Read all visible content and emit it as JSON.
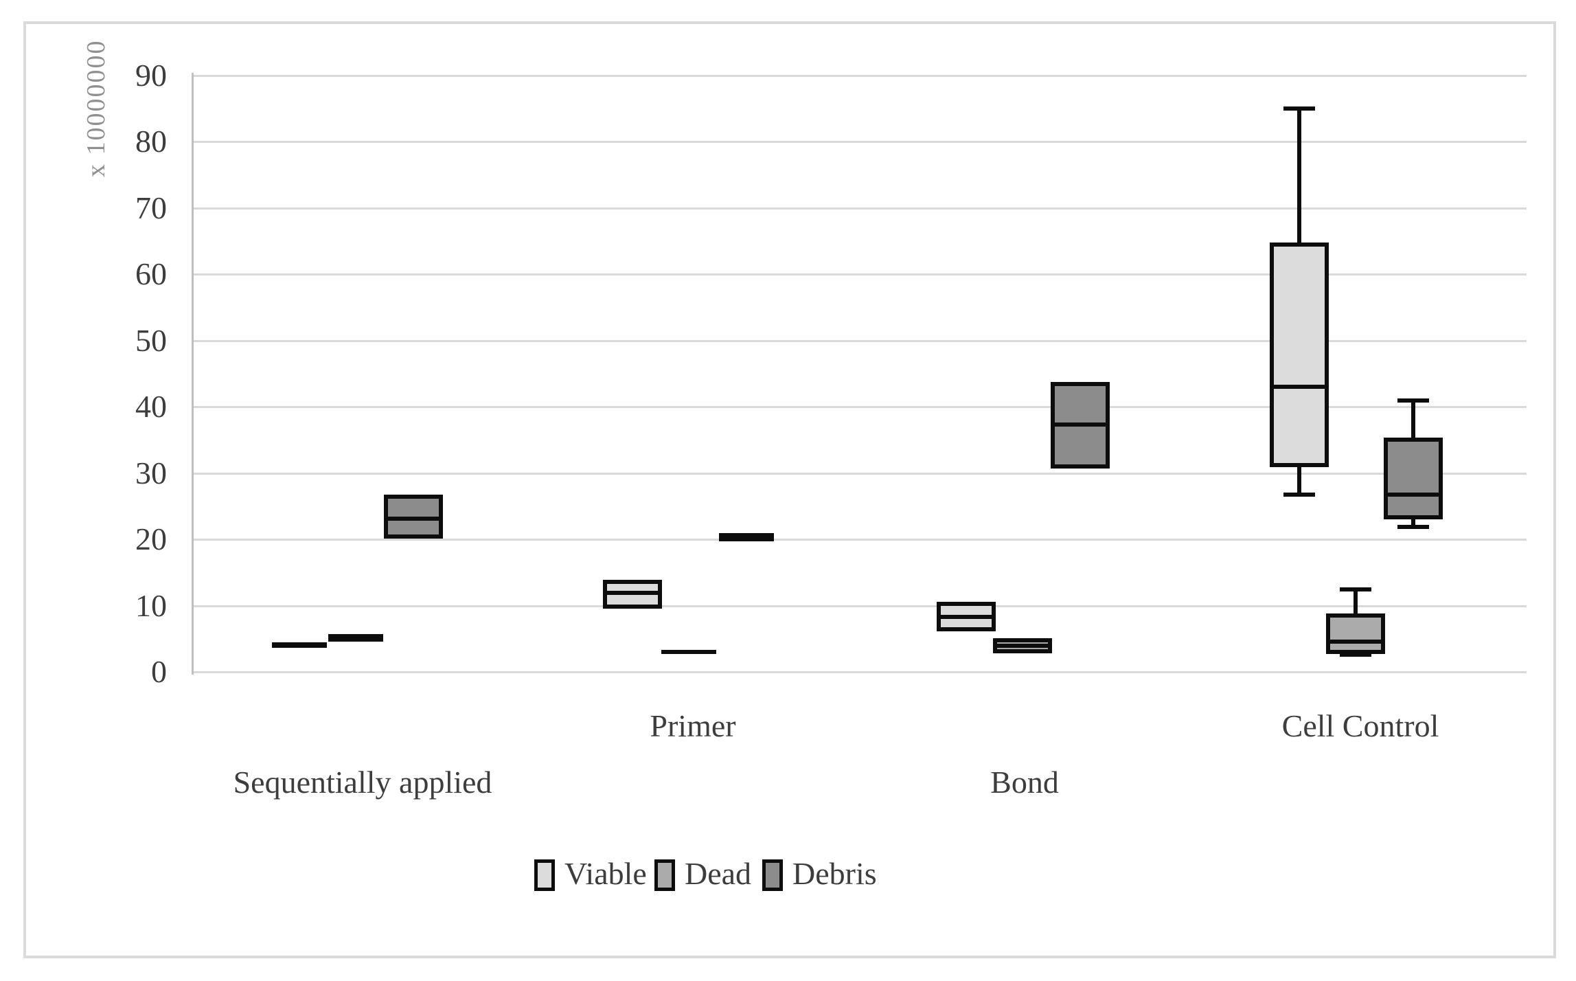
{
  "chart_data": {
    "type": "boxplot",
    "title": "",
    "y_axis": {
      "unit_label": "x 10000000",
      "min": 0,
      "max": 90,
      "tick_step": 10,
      "tick_labels": [
        "0",
        "10",
        "20",
        "30",
        "40",
        "50",
        "60",
        "70",
        "80",
        "90"
      ]
    },
    "categories": [
      "Sequentially applied",
      "Primer",
      "Bond",
      "Cell Control"
    ],
    "grid": true,
    "legend": {
      "position": "bottom",
      "entries": [
        "Viable",
        "Dead",
        "Debris"
      ]
    },
    "colors": {
      "viable_fill": "#dcdcdc",
      "dead_fill": "#ababab",
      "debris_fill": "#8c8c8c",
      "box_border": "#0d0d0d",
      "gridline": "#d9d9d9",
      "axis_line": "#bfbfbf",
      "text": "#3d3d3d"
    },
    "series": [
      {
        "name": "Viable",
        "fill": "#dcdcdc",
        "boxes": [
          {
            "min": 3.6,
            "q1": 3.6,
            "median": 4.0,
            "q3": 4.5,
            "max": 4.5,
            "flat": true
          },
          {
            "min": 9.8,
            "q1": 9.8,
            "median": 11.9,
            "q3": 13.6,
            "max": 13.6
          },
          {
            "min": 6.4,
            "q1": 6.4,
            "median": 8.3,
            "q3": 10.3,
            "max": 10.3
          },
          {
            "min": 26.7,
            "q1": 31.2,
            "median": 43.0,
            "q3": 64.5,
            "max": 85.0
          }
        ]
      },
      {
        "name": "Dead",
        "fill": "#ababab",
        "boxes": [
          {
            "min": 4.6,
            "q1": 4.6,
            "median": 5.1,
            "q3": 5.7,
            "max": 5.7,
            "flat": true
          },
          {
            "min": 2.7,
            "q1": 2.7,
            "median": 3.0,
            "q3": 3.3,
            "max": 3.3,
            "flat": true
          },
          {
            "min": 3.1,
            "q1": 3.1,
            "median": 3.9,
            "q3": 4.8,
            "max": 4.8
          },
          {
            "min": 2.6,
            "q1": 3.0,
            "median": 4.6,
            "q3": 8.5,
            "max": 12.4
          }
        ]
      },
      {
        "name": "Debris",
        "fill": "#8c8c8c",
        "boxes": [
          {
            "min": 20.4,
            "q1": 20.4,
            "median": 23.1,
            "q3": 26.4,
            "max": 26.4
          },
          {
            "min": 19.7,
            "q1": 19.7,
            "median": 20.3,
            "q3": 20.9,
            "max": 20.9,
            "flat": true
          },
          {
            "min": 31.0,
            "q1": 31.0,
            "median": 37.3,
            "q3": 43.4,
            "max": 43.4
          },
          {
            "min": 21.9,
            "q1": 23.3,
            "median": 26.8,
            "q3": 35.0,
            "max": 41.0
          }
        ]
      }
    ]
  }
}
